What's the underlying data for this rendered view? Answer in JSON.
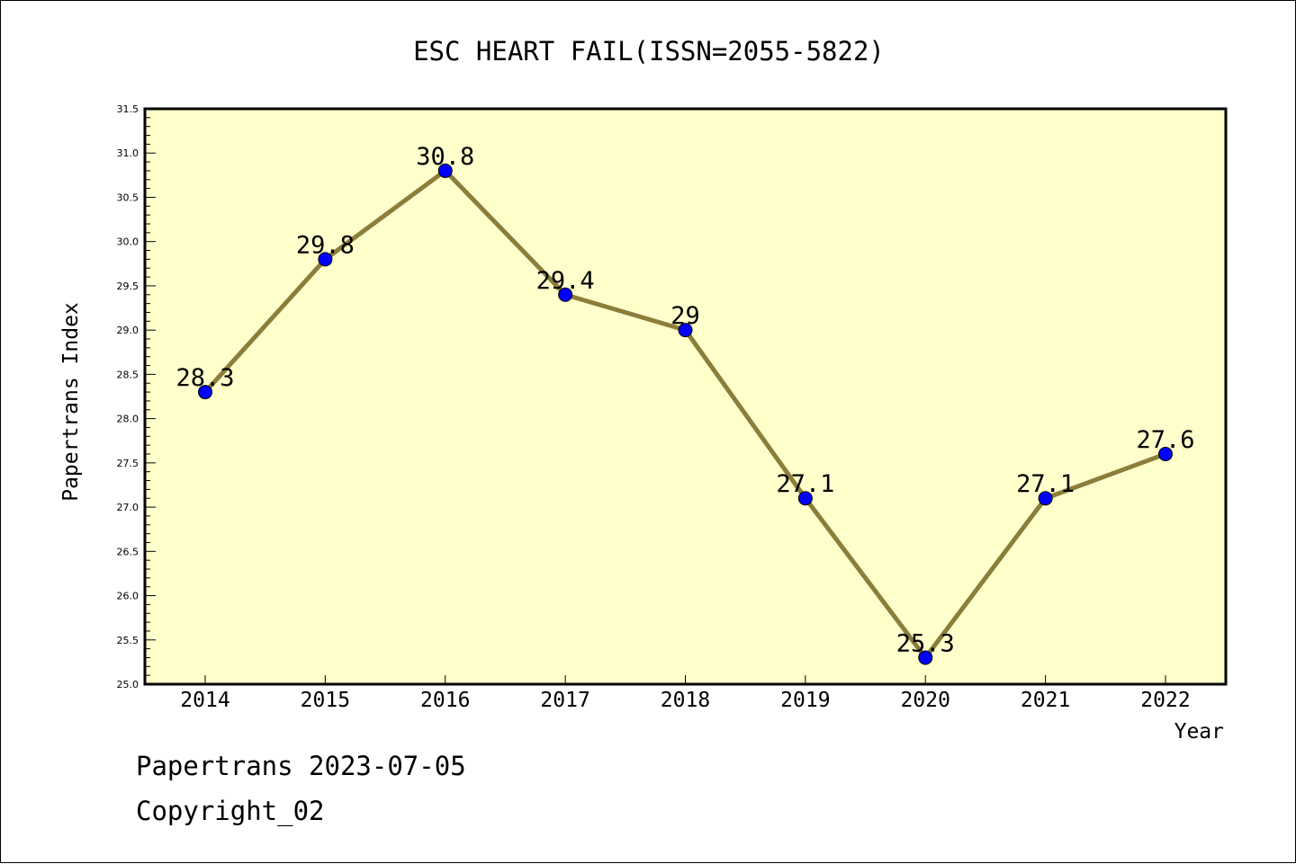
{
  "chart_data": {
    "type": "line",
    "title": "ESC HEART FAIL(ISSN=2055-5822)",
    "xlabel": "Year",
    "ylabel": "Papertrans Index",
    "categories": [
      "2014",
      "2015",
      "2016",
      "2017",
      "2018",
      "2019",
      "2020",
      "2021",
      "2022"
    ],
    "values": [
      28.3,
      29.8,
      30.8,
      29.4,
      29,
      27.1,
      25.3,
      27.1,
      27.6
    ],
    "data_labels": [
      "28.3",
      "29.8",
      "30.8",
      "29.4",
      "29",
      "27.1",
      "25.3",
      "27.1",
      "27.6"
    ],
    "ylim": [
      25.0,
      31.5
    ],
    "y_ticks": [
      "25.0",
      "25.5",
      "26.0",
      "26.5",
      "27.0",
      "27.5",
      "28.0",
      "28.5",
      "29.0",
      "29.5",
      "30.0",
      "30.5",
      "31.0",
      "31.5"
    ],
    "grid": false,
    "colors": {
      "plot_background": "#ffffcc",
      "line": "#8b7d3a",
      "marker": "#0000ff"
    }
  },
  "footer": {
    "line1": "Papertrans 2023-07-05",
    "line2": "Copyright_02"
  }
}
